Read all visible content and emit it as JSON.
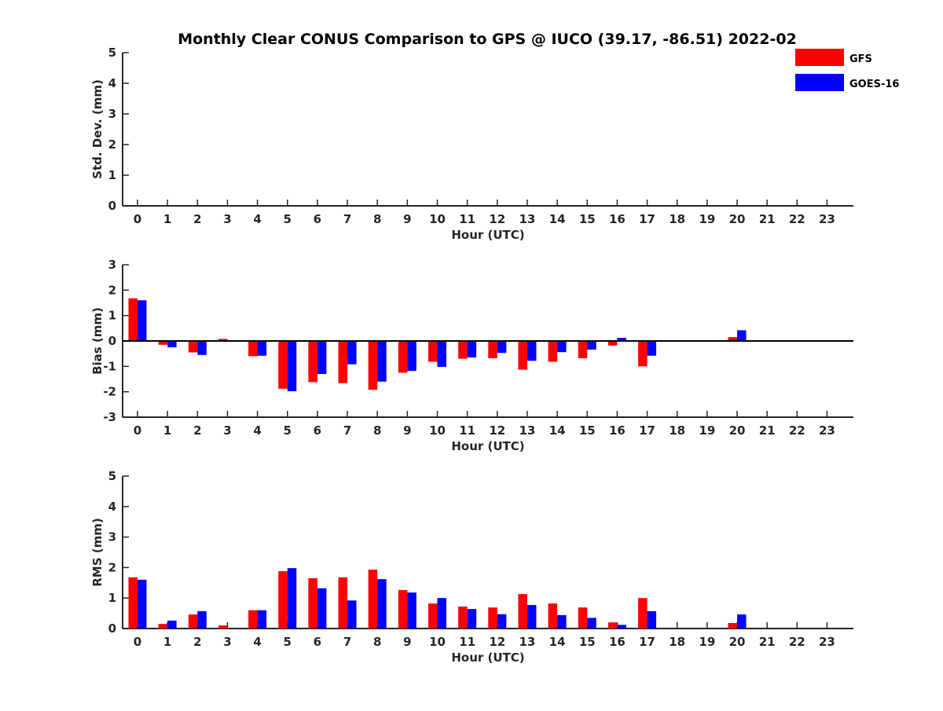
{
  "colors": {
    "gfs": "#ff0000",
    "goes": "#0000ff",
    "axis": "#262626"
  },
  "chart_data": [
    {
      "type": "bar",
      "id": "std",
      "title": "Monthly Clear CONUS Comparison to GPS @ IUCO (39.17, -86.51) 2022-02",
      "xlabel": "Hour (UTC)",
      "ylabel": "Std. Dev. (mm)",
      "ylim": [
        0,
        5
      ],
      "yticks": [
        "0",
        "1",
        "2",
        "3",
        "4",
        "5"
      ],
      "categories": [
        "0",
        "1",
        "2",
        "3",
        "4",
        "5",
        "6",
        "7",
        "8",
        "9",
        "10",
        "11",
        "12",
        "13",
        "14",
        "15",
        "16",
        "17",
        "18",
        "19",
        "20",
        "21",
        "22",
        "23"
      ],
      "legend": {
        "position": "top-right",
        "entries": [
          "GFS",
          "GOES-16"
        ]
      },
      "series": [
        {
          "name": "GFS",
          "values": [
            null,
            null,
            null,
            null,
            null,
            null,
            null,
            null,
            null,
            null,
            null,
            null,
            null,
            null,
            null,
            null,
            null,
            null,
            null,
            null,
            null,
            null,
            null,
            null
          ]
        },
        {
          "name": "GOES-16",
          "values": [
            null,
            null,
            null,
            null,
            null,
            null,
            null,
            null,
            null,
            null,
            null,
            null,
            null,
            null,
            null,
            null,
            null,
            null,
            null,
            null,
            null,
            null,
            null,
            null
          ]
        }
      ]
    },
    {
      "type": "bar",
      "id": "bias",
      "xlabel": "Hour (UTC)",
      "ylabel": "Bias (mm)",
      "ylim": [
        -3,
        3
      ],
      "yticks": [
        "-3",
        "-2",
        "-1",
        "0",
        "1",
        "2",
        "3"
      ],
      "zero_line": true,
      "categories": [
        "0",
        "1",
        "2",
        "3",
        "4",
        "5",
        "6",
        "7",
        "8",
        "9",
        "10",
        "11",
        "12",
        "13",
        "14",
        "15",
        "16",
        "17",
        "18",
        "19",
        "20",
        "21",
        "22",
        "23"
      ],
      "series": [
        {
          "name": "GFS",
          "values": [
            1.68,
            -0.15,
            -0.45,
            0.08,
            -0.6,
            -1.88,
            -1.62,
            -1.66,
            -1.92,
            -1.25,
            -0.82,
            -0.7,
            -0.68,
            -1.13,
            -0.82,
            -0.68,
            -0.18,
            -1.0,
            null,
            null,
            0.15,
            null,
            null,
            null
          ]
        },
        {
          "name": "GOES-16",
          "values": [
            1.6,
            -0.25,
            -0.55,
            null,
            -0.58,
            -1.98,
            -1.3,
            -0.92,
            -1.6,
            -1.18,
            -1.02,
            -0.65,
            -0.47,
            -0.78,
            -0.44,
            -0.34,
            0.12,
            -0.58,
            null,
            null,
            0.42,
            null,
            null,
            null
          ]
        }
      ]
    },
    {
      "type": "bar",
      "id": "rms",
      "xlabel": "Hour (UTC)",
      "ylabel": "RMS (mm)",
      "ylim": [
        0,
        5
      ],
      "yticks": [
        "0",
        "1",
        "2",
        "3",
        "4",
        "5"
      ],
      "categories": [
        "0",
        "1",
        "2",
        "3",
        "4",
        "5",
        "6",
        "7",
        "8",
        "9",
        "10",
        "11",
        "12",
        "13",
        "14",
        "15",
        "16",
        "17",
        "18",
        "19",
        "20",
        "21",
        "22",
        "23"
      ],
      "series": [
        {
          "name": "GFS",
          "values": [
            1.68,
            0.15,
            0.46,
            0.1,
            0.6,
            1.88,
            1.65,
            1.68,
            1.93,
            1.26,
            0.82,
            0.72,
            0.69,
            1.13,
            0.82,
            0.69,
            0.2,
            1.0,
            null,
            null,
            0.18,
            null,
            null,
            null
          ]
        },
        {
          "name": "GOES-16",
          "values": [
            1.6,
            0.26,
            0.57,
            null,
            0.6,
            1.98,
            1.32,
            0.92,
            1.62,
            1.18,
            1.0,
            0.64,
            0.47,
            0.77,
            0.44,
            0.35,
            0.12,
            0.57,
            null,
            null,
            0.46,
            null,
            null,
            null
          ]
        }
      ]
    }
  ]
}
